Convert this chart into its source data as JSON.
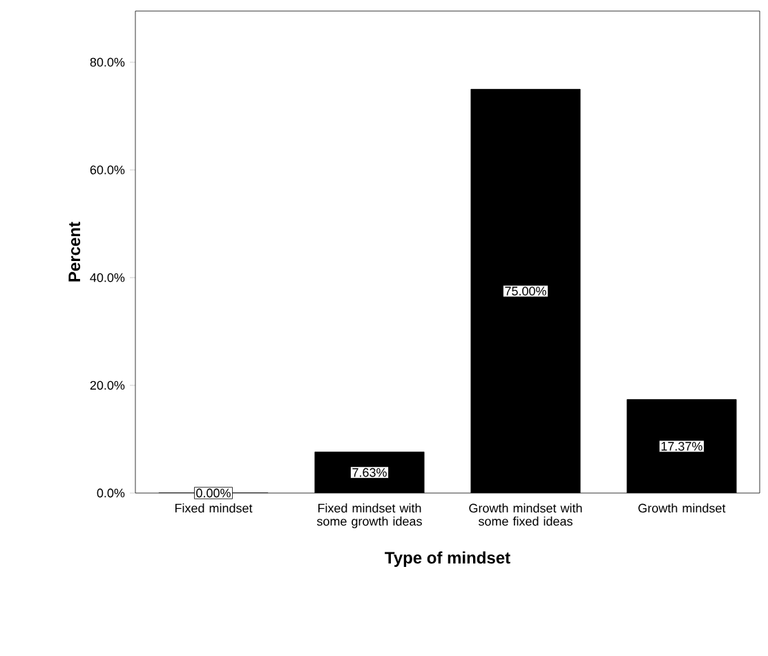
{
  "chart_data": {
    "type": "bar",
    "xlabel": "Type of mindset",
    "ylabel": "Percent",
    "categories": [
      "Fixed mindset",
      "Fixed mindset with some growth ideas",
      "Growth mindset with some fixed ideas",
      "Growth mindset"
    ],
    "values": [
      0,
      7.63,
      75.0,
      17.37
    ],
    "color": "#000000",
    "value_labels": [
      "0.00%",
      "7.63%",
      "75.00%",
      "17.37%"
    ],
    "ylim": [
      0,
      89.5
    ],
    "yticks": [
      {
        "value": 0,
        "label": "0.0%"
      },
      {
        "value": 20,
        "label": "20.0%"
      },
      {
        "value": 40,
        "label": "40.0%"
      },
      {
        "value": 60,
        "label": "60.0%"
      },
      {
        "value": 80,
        "label": "80.0%"
      }
    ],
    "grid": false
  }
}
